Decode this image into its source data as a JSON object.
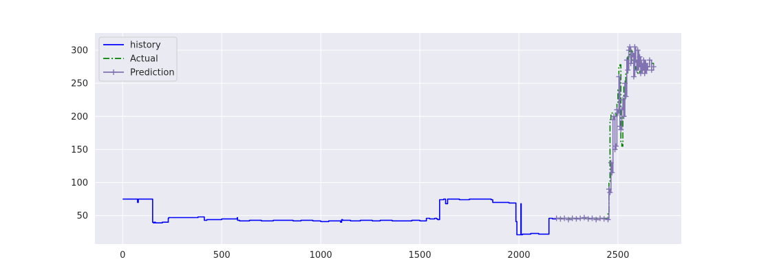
{
  "chart_data": {
    "type": "line",
    "xlim": [
      -140,
      2820
    ],
    "ylim": [
      7,
      326
    ],
    "grid": true,
    "legend_position": "top-left",
    "x_ticks": [
      0,
      500,
      1000,
      1500,
      2000,
      2500
    ],
    "y_ticks": [
      50,
      100,
      150,
      200,
      250,
      300
    ],
    "series": [
      {
        "name": "history",
        "style": "solid",
        "marker": "",
        "color": "#0000ff",
        "x": [
          0,
          74,
          75,
          78,
          79,
          150,
          151,
          155,
          160,
          165,
          200,
          228,
          230,
          232,
          300,
          380,
          410,
          412,
          425,
          500,
          570,
          578,
          580,
          590,
          640,
          700,
          760,
          800,
          860,
          900,
          960,
          1000,
          1040,
          1100,
          1105,
          1110,
          1150,
          1200,
          1260,
          1300,
          1360,
          1400,
          1460,
          1500,
          1530,
          1533,
          1550,
          1575,
          1585,
          1590,
          1600,
          1620,
          1630,
          1640,
          1700,
          1750,
          1800,
          1860,
          1868,
          1900,
          1950,
          1980,
          1985,
          1990,
          2000,
          2010,
          2012,
          2018,
          2020,
          2030,
          2060,
          2100,
          2140,
          2150,
          2152,
          2170,
          2190
        ],
        "y": [
          75,
          75,
          70,
          70,
          75,
          75,
          40,
          39,
          40,
          39,
          40,
          40,
          46,
          47,
          47,
          48,
          48,
          43,
          44,
          45,
          45,
          47,
          43,
          42,
          43,
          42,
          43,
          43,
          42,
          43,
          42,
          41,
          42,
          40,
          44,
          43,
          42,
          43,
          42,
          43,
          42,
          42,
          43,
          42,
          42,
          46,
          45,
          46,
          45,
          44,
          74,
          75,
          68,
          75,
          74,
          75,
          75,
          74,
          70,
          70,
          69,
          69,
          41,
          21,
          21,
          68,
          21,
          22,
          22,
          22,
          23,
          22,
          22,
          22,
          46,
          45,
          46
        ]
      },
      {
        "name": "Actual",
        "style": "dashdot",
        "marker": "",
        "color": "#008000",
        "x": [
          2190,
          2250,
          2300,
          2350,
          2400,
          2445,
          2450,
          2455,
          2460,
          2465,
          2480,
          2490,
          2495,
          2500,
          2505,
          2510,
          2515,
          2520,
          2525,
          2530,
          2540,
          2550,
          2560,
          2570,
          2580,
          2590,
          2600,
          2610,
          2620,
          2630,
          2640,
          2660,
          2680
        ],
        "y": [
          46,
          46,
          46,
          46,
          46,
          46,
          55,
          100,
          195,
          205,
          205,
          200,
          220,
          240,
          275,
          278,
          160,
          155,
          200,
          245,
          265,
          290,
          300,
          285,
          275,
          270,
          265,
          268,
          280,
          270,
          275,
          280,
          275
        ]
      },
      {
        "name": "Prediction",
        "style": "solid",
        "marker": "+",
        "color": "#8172b2",
        "x": [
          2190,
          2210,
          2230,
          2250,
          2270,
          2290,
          2310,
          2330,
          2350,
          2370,
          2390,
          2410,
          2430,
          2450,
          2455,
          2460,
          2465,
          2470,
          2475,
          2480,
          2485,
          2490,
          2495,
          2500,
          2505,
          2510,
          2515,
          2520,
          2525,
          2530,
          2535,
          2540,
          2545,
          2550,
          2555,
          2560,
          2565,
          2570,
          2575,
          2580,
          2585,
          2590,
          2595,
          2600,
          2605,
          2610,
          2615,
          2620,
          2625,
          2630,
          2635,
          2640,
          2645,
          2650,
          2660,
          2670,
          2680
        ],
        "y": [
          46,
          45,
          46,
          44,
          46,
          45,
          46,
          47,
          45,
          46,
          44,
          46,
          45,
          44,
          90,
          85,
          130,
          115,
          195,
          200,
          150,
          155,
          210,
          205,
          260,
          185,
          180,
          210,
          225,
          200,
          250,
          230,
          285,
          270,
          300,
          305,
          280,
          290,
          295,
          260,
          305,
          285,
          270,
          300,
          275,
          290,
          265,
          280,
          270,
          285,
          265,
          280,
          270,
          275,
          285,
          270,
          275
        ]
      }
    ]
  }
}
